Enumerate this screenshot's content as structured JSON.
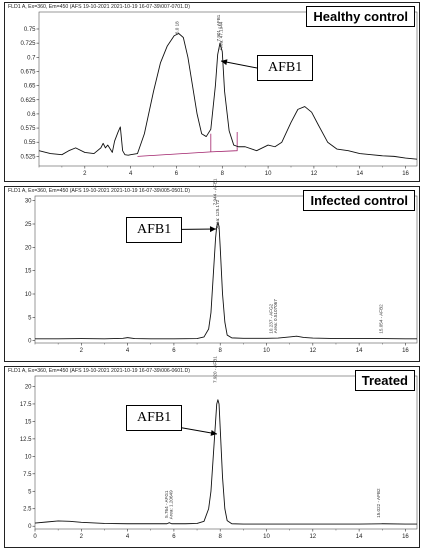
{
  "chart_data": [
    {
      "type": "line",
      "header": "FLD1 A, Ex=360, Em=450 (AFS 19-10-2021 2021-10-19 16-07-39\\007-0701.D)",
      "label": "Healthy control",
      "annotation": "AFB1",
      "xlim": [
        0,
        16.5
      ],
      "ylim": [
        0.508,
        0.78
      ],
      "xticks": [
        2,
        4,
        6,
        8,
        10,
        12,
        14,
        16
      ],
      "yticks": [
        0.525,
        0.55,
        0.575,
        0.6,
        0.625,
        0.65,
        0.675,
        0.7,
        0.725,
        0.75
      ],
      "ytick_labels": [
        "0.525",
        "0.55",
        "0.575",
        "0.6",
        "0.625",
        "0.65",
        "0.675",
        "0.7",
        "0.725",
        "0.75"
      ],
      "peak_labels": [
        {
          "x": 6.1,
          "y": 0.741,
          "text": "6.0 18"
        },
        {
          "x": 7.9,
          "y": 0.728,
          "text": "7.901 - AFB1"
        },
        {
          "x": 8.0,
          "y": 0.712,
          "text": "Area: 47.1944"
        }
      ],
      "baseline": {
        "x": [
          4.3,
          7.5,
          8.65,
          8.65
        ],
        "y": [
          0.525,
          0.533,
          0.535,
          0.568
        ]
      },
      "signal": {
        "x": [
          0,
          0.5,
          1.0,
          1.3,
          1.6,
          2.0,
          2.4,
          2.7,
          2.8,
          2.9,
          3.0,
          3.2,
          3.3,
          3.45,
          3.55,
          3.65,
          3.75,
          3.9,
          4.0,
          4.3,
          4.6,
          5.0,
          5.3,
          5.6,
          5.9,
          6.1,
          6.3,
          6.5,
          6.7,
          6.9,
          7.1,
          7.3,
          7.5,
          7.7,
          7.8,
          7.9,
          8.0,
          8.1,
          8.3,
          8.5,
          8.7,
          9.0,
          9.5,
          10.0,
          10.3,
          10.6,
          11.0,
          11.3,
          11.6,
          11.9,
          12.2,
          12.6,
          13.0,
          13.5,
          14.0,
          14.5,
          15.0,
          15.5,
          16.0,
          16.5
        ],
        "y": [
          0.535,
          0.53,
          0.528,
          0.535,
          0.54,
          0.532,
          0.53,
          0.54,
          0.548,
          0.54,
          0.545,
          0.532,
          0.552,
          0.568,
          0.577,
          0.535,
          0.528,
          0.527,
          0.528,
          0.53,
          0.565,
          0.64,
          0.69,
          0.72,
          0.738,
          0.742,
          0.735,
          0.7,
          0.65,
          0.6,
          0.565,
          0.56,
          0.573,
          0.65,
          0.705,
          0.725,
          0.71,
          0.64,
          0.57,
          0.545,
          0.542,
          0.542,
          0.535,
          0.545,
          0.542,
          0.55,
          0.585,
          0.608,
          0.613,
          0.603,
          0.58,
          0.55,
          0.538,
          0.535,
          0.53,
          0.528,
          0.526,
          0.525,
          0.522,
          0.52
        ]
      }
    },
    {
      "type": "line",
      "header": "FLD1 A, Ex=360, Em=450 (AFS 19-10-2021 2021-10-19 16-07-39\\005-0501.D)",
      "label": "Infected control",
      "annotation": "AFB1",
      "xlim": [
        0,
        16.5
      ],
      "ylim": [
        -0.5,
        31
      ],
      "xticks": [
        2,
        4,
        6,
        8,
        10,
        12,
        14,
        16
      ],
      "yticks": [
        0,
        5,
        10,
        15,
        20,
        25,
        30
      ],
      "ytick_labels": [
        "0",
        "5",
        "10",
        "15",
        "20",
        "25",
        "30"
      ],
      "peak_labels": [
        {
          "x": 7.85,
          "y": 29.0,
          "text": "7.944 - AFB1"
        },
        {
          "x": 7.95,
          "y": 24.0,
          "text": "Area: 125.172"
        },
        {
          "x": 10.25,
          "y": 1.5,
          "text": "10.237 - AFG2"
        },
        {
          "x": 10.45,
          "y": 1.6,
          "text": "Area: 0.5107067"
        },
        {
          "x": 15.0,
          "y": 1.5,
          "text": "15.054 - AFB2"
        }
      ],
      "signal": {
        "x": [
          0,
          1,
          2,
          3,
          3.8,
          4.0,
          4.3,
          5,
          6,
          7.0,
          7.3,
          7.5,
          7.6,
          7.7,
          7.8,
          7.85,
          7.9,
          7.95,
          8.0,
          8.1,
          8.2,
          8.3,
          8.5,
          9,
          10,
          10.5,
          11.0,
          11.3,
          11.6,
          12,
          13,
          14,
          15,
          16,
          16.5
        ],
        "y": [
          0.4,
          0.4,
          0.45,
          0.4,
          0.5,
          0.65,
          0.45,
          0.4,
          0.4,
          0.45,
          0.8,
          2.5,
          6,
          14,
          22,
          24.5,
          25.3,
          24.5,
          20,
          10,
          4,
          1.2,
          0.6,
          0.5,
          0.5,
          0.55,
          0.8,
          0.95,
          0.7,
          0.55,
          0.45,
          0.45,
          0.45,
          0.4,
          0.4
        ]
      }
    },
    {
      "type": "line",
      "header": "FLD1 A, Ex=360, Em=450 (AFS 19-10-2021 2021-10-19 16-07-39\\006-0601.D)",
      "label": "Treated",
      "annotation": "AFB1",
      "xlim": [
        0,
        16.5
      ],
      "ylim": [
        -0.4,
        21.5
      ],
      "xticks": [
        0,
        2,
        4,
        6,
        8,
        10,
        12,
        14,
        16
      ],
      "yticks": [
        0,
        2.5,
        5,
        7.5,
        10,
        12.5,
        15,
        17.5,
        20
      ],
      "ytick_labels": [
        "0",
        "2.5",
        "5",
        "7.5",
        "10",
        "12.5",
        "15",
        "17.5",
        "20"
      ],
      "peak_labels": [
        {
          "x": 7.85,
          "y": 20.5,
          "text": "7.920 - AFB1"
        },
        {
          "x": 5.75,
          "y": 1.2,
          "text": "5.764 - AFG1"
        },
        {
          "x": 5.95,
          "y": 1.0,
          "text": "Area: 1.20649"
        },
        {
          "x": 14.9,
          "y": 1.2,
          "text": "15.022 - AFB2"
        }
      ],
      "signal": {
        "x": [
          0,
          0.5,
          1,
          1.5,
          2,
          3,
          4,
          5,
          5.7,
          5.8,
          5.9,
          6.5,
          7.0,
          7.3,
          7.5,
          7.6,
          7.7,
          7.8,
          7.85,
          7.9,
          7.95,
          8.0,
          8.1,
          8.2,
          8.3,
          8.5,
          9,
          10,
          11,
          12,
          13,
          14,
          15,
          16,
          16.5
        ],
        "y": [
          0.45,
          0.6,
          0.75,
          0.7,
          0.55,
          0.4,
          0.35,
          0.35,
          0.35,
          0.5,
          0.35,
          0.35,
          0.4,
          0.7,
          2.5,
          5,
          10,
          15,
          17.5,
          18.1,
          17.5,
          14,
          7,
          2.5,
          0.8,
          0.35,
          0.3,
          0.3,
          0.3,
          0.3,
          0.3,
          0.3,
          0.35,
          0.3,
          0.3
        ]
      }
    }
  ]
}
